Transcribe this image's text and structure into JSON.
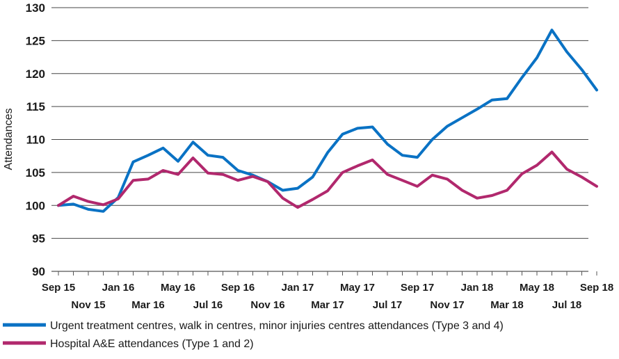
{
  "chart_data": {
    "type": "line",
    "title": "",
    "xlabel": "",
    "ylabel": "Attendances",
    "ylim": [
      90,
      130
    ],
    "yticks": [
      90,
      95,
      100,
      105,
      110,
      115,
      120,
      125,
      130
    ],
    "grid": "horizontal",
    "legend_position": "bottom",
    "x": [
      "Sep 15",
      "Oct 15",
      "Nov 15",
      "Dec 15",
      "Jan 16",
      "Feb 16",
      "Mar 16",
      "Apr 16",
      "May 16",
      "Jun 16",
      "Jul 16",
      "Aug 16",
      "Sep 16",
      "Oct 16",
      "Nov 16",
      "Dec 16",
      "Jan 17",
      "Feb 17",
      "Mar 17",
      "Apr 17",
      "May 17",
      "Jun 17",
      "Jul 17",
      "Aug 17",
      "Sep 17",
      "Oct 17",
      "Nov 17",
      "Dec 17",
      "Jan 18",
      "Feb 18",
      "Mar 18",
      "Apr 18",
      "May 18",
      "Jun 18",
      "Jul 18",
      "Aug 18",
      "Sep 18"
    ],
    "x_tick_labels_top": [
      "Sep 15",
      "Jan 16",
      "May 16",
      "Sep 16",
      "Jan 17",
      "May 17",
      "Sep 17",
      "Jan 18",
      "May 18",
      "Sep 18"
    ],
    "x_tick_labels_bottom": [
      "Nov 15",
      "Mar 16",
      "Jul 16",
      "Nov 16",
      "Mar 17",
      "Jul 17",
      "Nov 17",
      "Mar 18",
      "Jul 18"
    ],
    "series": [
      {
        "name": "Urgent treatment centres, walk in centres, minor injuries centres attendances (Type 3 and 4)",
        "color": "#0a72c4",
        "values": [
          100.0,
          100.2,
          99.4,
          99.1,
          101.2,
          106.6,
          107.6,
          108.7,
          106.7,
          109.6,
          107.6,
          107.3,
          105.3,
          104.6,
          103.6,
          102.3,
          102.6,
          104.3,
          108.0,
          110.8,
          111.7,
          111.9,
          109.3,
          107.6,
          107.3,
          110.0,
          112.0,
          113.3,
          114.6,
          116.0,
          116.2,
          119.4,
          122.4,
          126.6,
          123.3,
          120.6,
          117.5
        ]
      },
      {
        "name": "Hospital A&E attendances (Type 1 and 2)",
        "color": "#b1286d",
        "values": [
          100.0,
          101.4,
          100.6,
          100.1,
          101.0,
          103.8,
          104.0,
          105.3,
          104.7,
          107.2,
          104.9,
          104.7,
          103.8,
          104.4,
          103.6,
          101.1,
          99.7,
          100.9,
          102.2,
          105.0,
          106.0,
          106.9,
          104.7,
          103.8,
          102.9,
          104.6,
          104.0,
          102.3,
          101.1,
          101.5,
          102.3,
          104.8,
          106.1,
          108.1,
          105.5,
          104.3,
          102.9
        ]
      }
    ]
  }
}
